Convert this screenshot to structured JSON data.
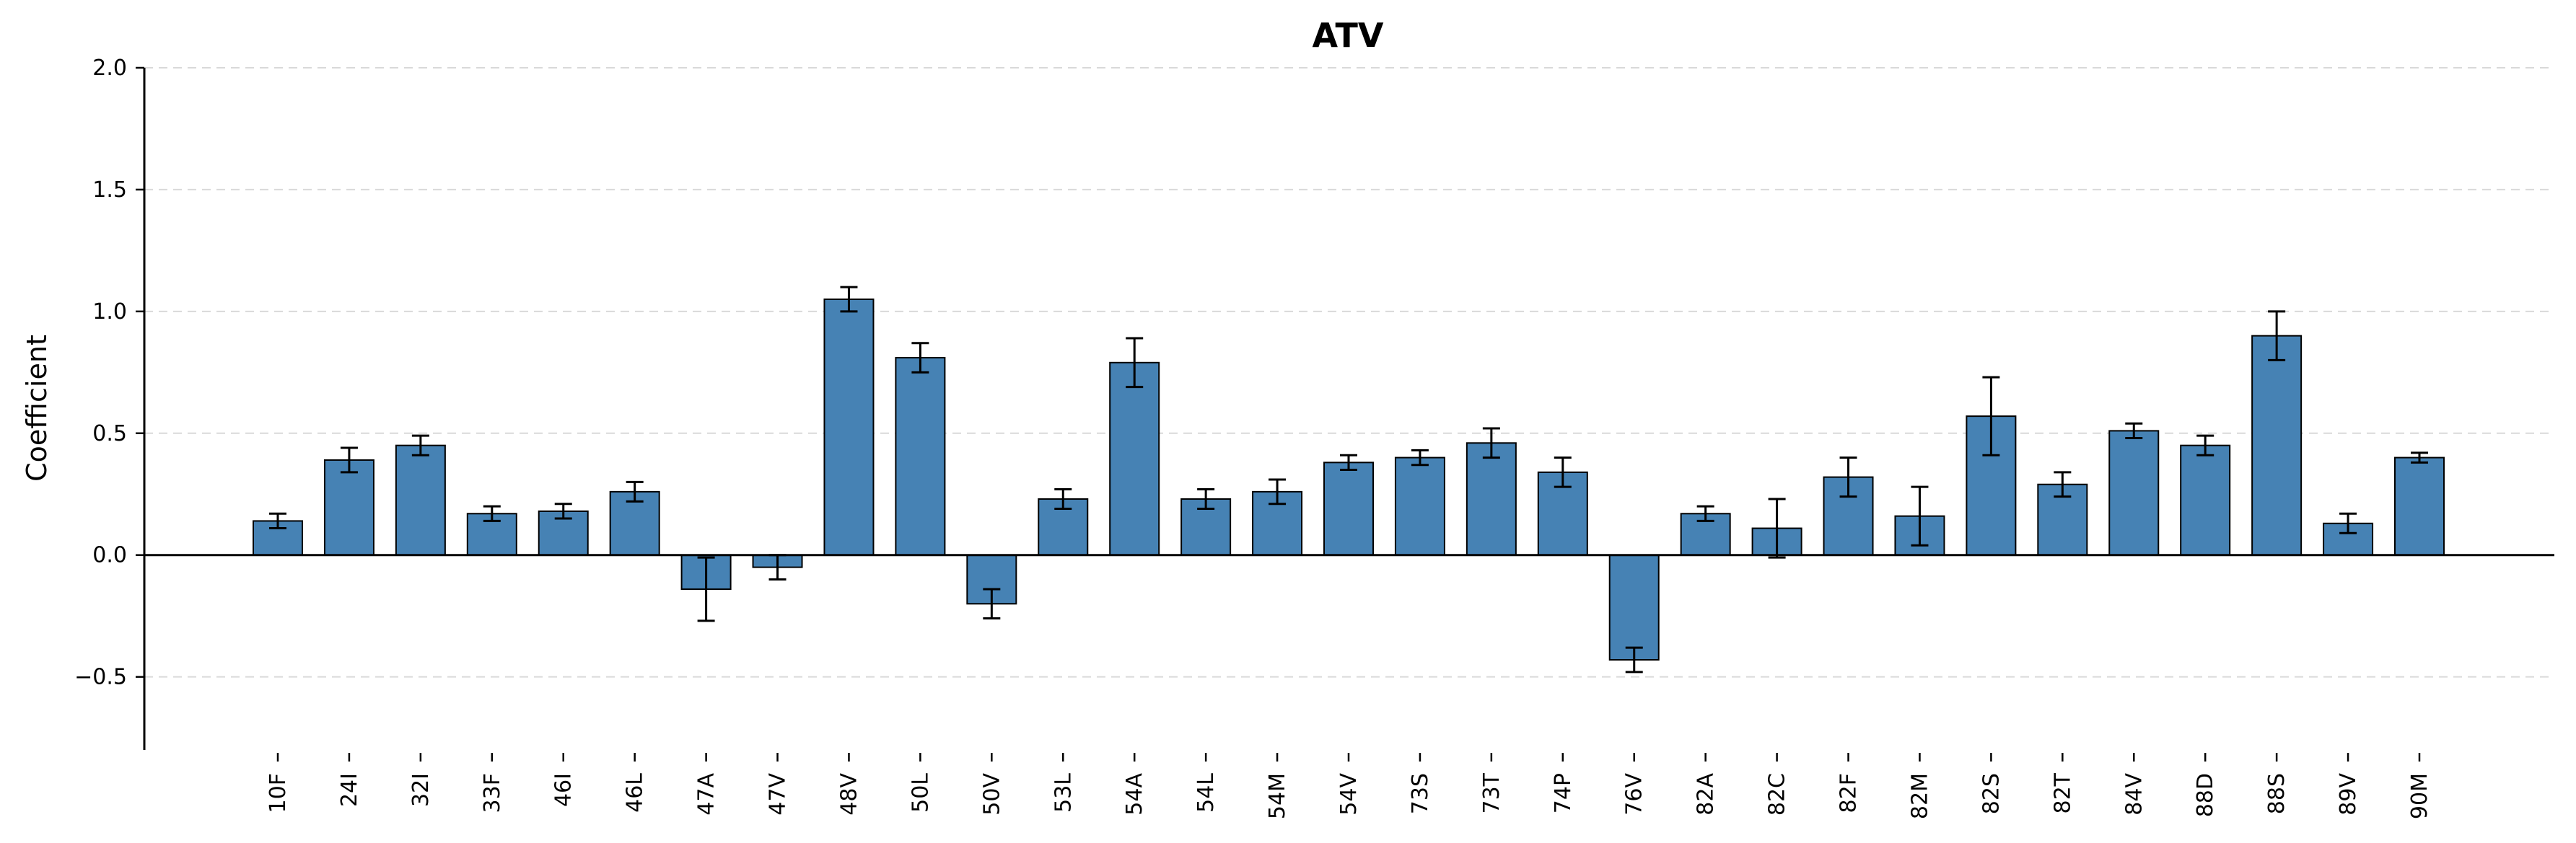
{
  "chart_data": {
    "type": "bar",
    "title": "ATV",
    "xlabel": "",
    "ylabel": "Coefficient",
    "ylim": [
      -0.8,
      2.0
    ],
    "yticks": [
      -0.5,
      0.0,
      0.5,
      1.0,
      1.5,
      2.0
    ],
    "ytick_labels": [
      "−0.5",
      "0.0",
      "0.5",
      "1.0",
      "1.5",
      "2.0"
    ],
    "grid": "horizontal dashed",
    "bar_color": "#4682b4",
    "bar_edge_color": "#000000",
    "categories": [
      "10F",
      "24I",
      "32I",
      "33F",
      "46I",
      "46L",
      "47A",
      "47V",
      "48V",
      "50L",
      "50V",
      "53L",
      "54A",
      "54L",
      "54M",
      "54V",
      "73S",
      "73T",
      "74P",
      "76V",
      "82A",
      "82C",
      "82F",
      "82M",
      "82S",
      "82T",
      "84V",
      "88D",
      "88S",
      "89V",
      "90M"
    ],
    "values": [
      0.14,
      0.39,
      0.45,
      0.17,
      0.18,
      0.26,
      -0.14,
      -0.05,
      1.05,
      0.81,
      -0.2,
      0.23,
      0.79,
      0.23,
      0.26,
      0.38,
      0.4,
      0.46,
      0.34,
      -0.43,
      0.17,
      0.11,
      0.32,
      0.16,
      0.57,
      0.29,
      0.51,
      0.45,
      0.9,
      0.13,
      0.4
    ],
    "errors": [
      0.03,
      0.05,
      0.04,
      0.03,
      0.03,
      0.04,
      0.13,
      0.05,
      0.05,
      0.06,
      0.06,
      0.04,
      0.1,
      0.04,
      0.05,
      0.03,
      0.03,
      0.06,
      0.06,
      0.05,
      0.03,
      0.12,
      0.08,
      0.12,
      0.16,
      0.05,
      0.03,
      0.04,
      0.1,
      0.04,
      0.02
    ]
  }
}
